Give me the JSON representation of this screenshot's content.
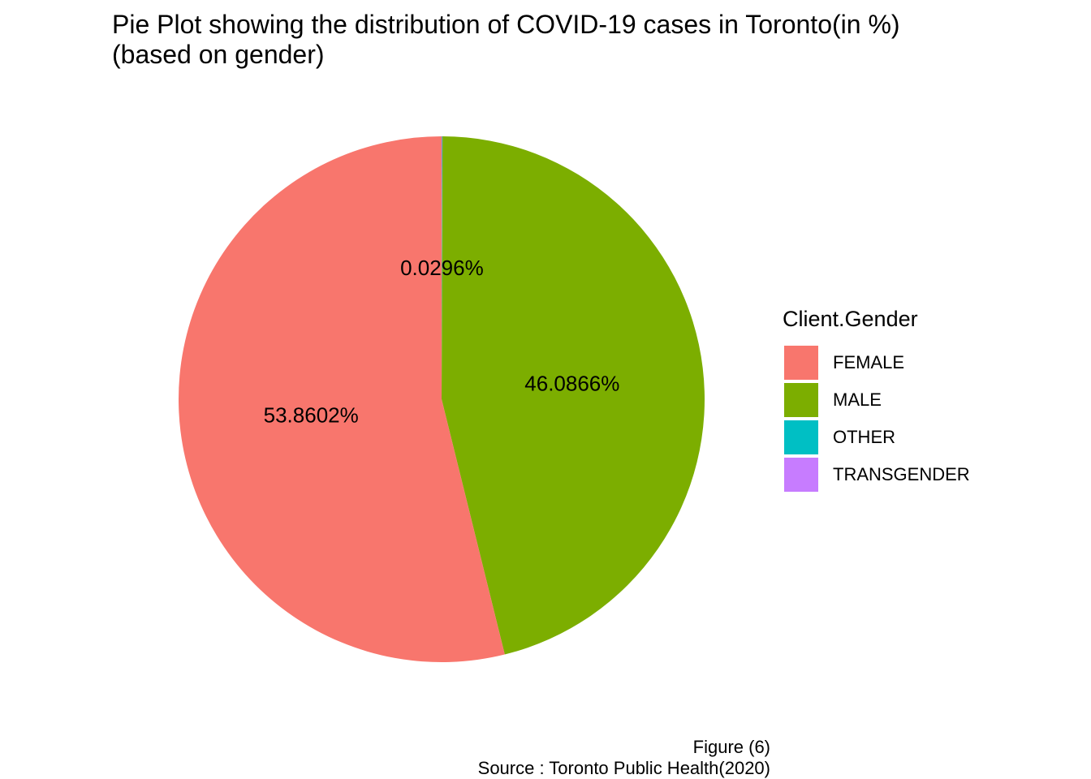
{
  "chart_data": {
    "type": "pie",
    "title": [
      "Pie Plot showing the distribution of COVID-19 cases in Toronto(in %)",
      "(based on gender)"
    ],
    "legend_title": "Client.Gender",
    "legend_position": "right",
    "slices": [
      {
        "name": "FEMALE",
        "value": 53.8602,
        "label": "53.8602%",
        "color": "#F8766D"
      },
      {
        "name": "MALE",
        "value": 46.0866,
        "label": "46.0866%",
        "color": "#7CAE00"
      },
      {
        "name": "OTHER",
        "value": 0.0296,
        "label": "0.0296%",
        "color": "#00BFC4"
      },
      {
        "name": "TRANSGENDER",
        "value": 0.0236,
        "label": "",
        "color": "#C77CFF"
      }
    ],
    "caption": [
      "Figure (6)",
      "Source : Toronto Public Health(2020)"
    ]
  }
}
